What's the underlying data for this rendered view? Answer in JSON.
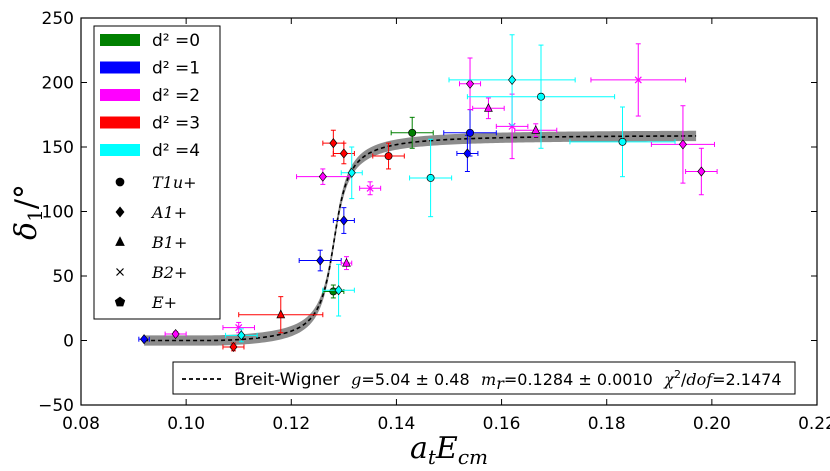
{
  "chart_data": {
    "type": "scatter",
    "title": "",
    "xlabel": "a_t E_cm",
    "ylabel": "δ_1 / °",
    "xlim": [
      0.08,
      0.22
    ],
    "ylim": [
      -50,
      250
    ],
    "xticks": [
      "0.08",
      "0.10",
      "0.12",
      "0.14",
      "0.16",
      "0.18",
      "0.20",
      "0.22"
    ],
    "yticks": [
      "−50",
      "0",
      "50",
      "100",
      "150",
      "200",
      "250"
    ],
    "colors": {
      "d0": "#008000",
      "d1": "#0000ff",
      "d2": "#ff00ff",
      "d3": "#ff0000",
      "d4": "#00ffff",
      "band": "#808080"
    },
    "legend_colors": [
      {
        "label": "d² =0",
        "color": "#008000"
      },
      {
        "label": "d² =1",
        "color": "#0000ff"
      },
      {
        "label": "d² =2",
        "color": "#ff00ff"
      },
      {
        "label": "d² =3",
        "color": "#ff0000"
      },
      {
        "label": "d² =4",
        "color": "#00ffff"
      }
    ],
    "legend_irreps": [
      {
        "label": "T1u+",
        "marker": "circle"
      },
      {
        "label": "A1+",
        "marker": "diamond"
      },
      {
        "label": "B1+",
        "marker": "triangle"
      },
      {
        "label": "B2+",
        "marker": "x"
      },
      {
        "label": "E+",
        "marker": "pentagon"
      }
    ],
    "fit": {
      "name": "Breit-Wigner",
      "g": "5.04 ± 0.48",
      "m_r": "0.1284 ± 0.0010",
      "chi2_dof": "2.1474",
      "g_value": 5.04,
      "m_r_value": 0.1284,
      "x_range": [
        0.092,
        0.197
      ],
      "plateau": 168,
      "band_halfwidth_deg": 4
    },
    "points": [
      {
        "x": 0.092,
        "y": 1,
        "d2": 1,
        "irrep": "A1+",
        "xerr": 0.001,
        "yerr": 1
      },
      {
        "x": 0.098,
        "y": 5,
        "d2": 2,
        "irrep": "A1+",
        "xerr": 0.002,
        "yerr": 2
      },
      {
        "x": 0.109,
        "y": -5,
        "d2": 3,
        "irrep": "A1+",
        "xerr": 0.002,
        "yerr": 3
      },
      {
        "x": 0.11,
        "y": 10,
        "d2": 2,
        "irrep": "B2+",
        "xerr": 0.003,
        "yerr": 4
      },
      {
        "x": 0.1105,
        "y": 4,
        "d2": 4,
        "irrep": "A1+",
        "xerr": 0.003,
        "yerr": 5
      },
      {
        "x": 0.118,
        "y": 20,
        "d2": 3,
        "irrep": "B1+",
        "xerr": 0.008,
        "yerr": 14
      },
      {
        "x": 0.1255,
        "y": 62,
        "d2": 1,
        "irrep": "A1+",
        "xerr": 0.004,
        "yerr": 8
      },
      {
        "x": 0.126,
        "y": 127,
        "d2": 2,
        "irrep": "A1+",
        "xerr": 0.005,
        "yerr": 6
      },
      {
        "x": 0.128,
        "y": 38,
        "d2": 0,
        "irrep": "T1u+",
        "xerr": 0.002,
        "yerr": 5
      },
      {
        "x": 0.128,
        "y": 153,
        "d2": 3,
        "irrep": "A1+",
        "xerr": 0.002,
        "yerr": 10
      },
      {
        "x": 0.129,
        "y": 39,
        "d2": 4,
        "irrep": "A1+",
        "xerr": 0.003,
        "yerr": 20
      },
      {
        "x": 0.13,
        "y": 93,
        "d2": 1,
        "irrep": "A1+",
        "xerr": 0.002,
        "yerr": 10
      },
      {
        "x": 0.13,
        "y": 145,
        "d2": 3,
        "irrep": "A1+",
        "xerr": 0.002,
        "yerr": 8
      },
      {
        "x": 0.1305,
        "y": 60,
        "d2": 2,
        "irrep": "B1+",
        "xerr": 0.001,
        "yerr": 5
      },
      {
        "x": 0.1315,
        "y": 130,
        "d2": 4,
        "irrep": "A1+",
        "xerr": 0.002,
        "yerr": 20
      },
      {
        "x": 0.135,
        "y": 118,
        "d2": 2,
        "irrep": "B2+",
        "xerr": 0.002,
        "yerr": 5
      },
      {
        "x": 0.1385,
        "y": 143,
        "d2": 3,
        "irrep": "T1u+",
        "xerr": 0.003,
        "yerr": 10
      },
      {
        "x": 0.143,
        "y": 161,
        "d2": 0,
        "irrep": "T1u+",
        "xerr": 0.004,
        "yerr": 12
      },
      {
        "x": 0.1465,
        "y": 126,
        "d2": 4,
        "irrep": "T1u+",
        "xerr": 0.004,
        "yerr": 30
      },
      {
        "x": 0.1535,
        "y": 145,
        "d2": 1,
        "irrep": "A1+",
        "xerr": 0.002,
        "yerr": 14
      },
      {
        "x": 0.154,
        "y": 161,
        "d2": 1,
        "irrep": "T1u+",
        "xerr": 0.005,
        "yerr": 18
      },
      {
        "x": 0.154,
        "y": 199,
        "d2": 2,
        "irrep": "A1+",
        "xerr": 0.002,
        "yerr": 20
      },
      {
        "x": 0.1575,
        "y": 180,
        "d2": 2,
        "irrep": "B1+",
        "xerr": 0.003,
        "yerr": 8
      },
      {
        "x": 0.162,
        "y": 166,
        "d2": 2,
        "irrep": "B2+",
        "xerr": 0.003,
        "yerr": 25
      },
      {
        "x": 0.162,
        "y": 202,
        "d2": 4,
        "irrep": "A1+",
        "xerr": 0.012,
        "yerr": 35
      },
      {
        "x": 0.1665,
        "y": 163,
        "d2": 2,
        "irrep": "B1+",
        "xerr": 0.004,
        "yerr": 5
      },
      {
        "x": 0.1675,
        "y": 189,
        "d2": 4,
        "irrep": "T1u+",
        "xerr": 0.014,
        "yerr": 40
      },
      {
        "x": 0.183,
        "y": 154,
        "d2": 4,
        "irrep": "T1u+",
        "xerr": 0.01,
        "yerr": 27
      },
      {
        "x": 0.186,
        "y": 202,
        "d2": 2,
        "irrep": "B2+",
        "xerr": 0.009,
        "yerr": 28
      },
      {
        "x": 0.1945,
        "y": 152,
        "d2": 2,
        "irrep": "A1+",
        "xerr": 0.006,
        "yerr": 30
      },
      {
        "x": 0.198,
        "y": 131,
        "d2": 2,
        "irrep": "A1+",
        "xerr": 0.003,
        "yerr": 18
      }
    ]
  }
}
